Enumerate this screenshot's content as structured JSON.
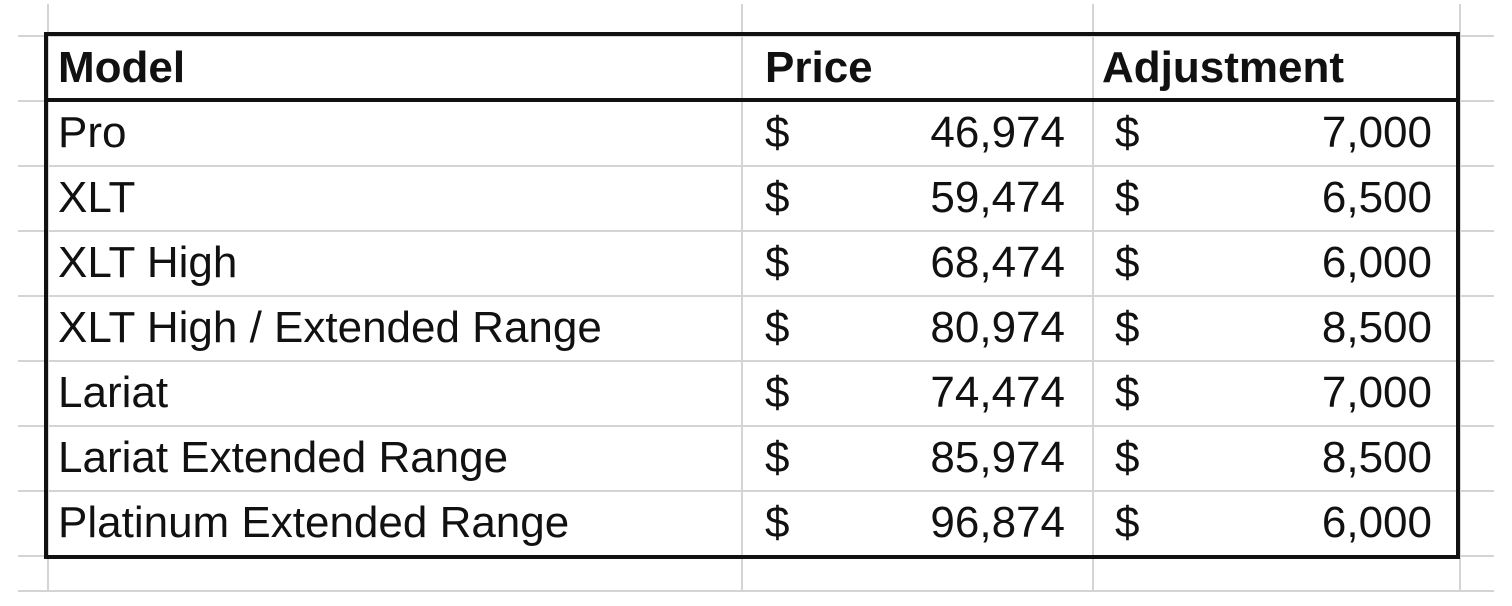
{
  "table": {
    "header": [
      "Model",
      "Price",
      "Adjustment"
    ],
    "rows": [
      [
        "Pro",
        "$",
        "46,974",
        "$",
        "7,000"
      ],
      [
        "XLT",
        "$",
        "59,474",
        "$",
        "6,500"
      ],
      [
        "XLT High",
        "$",
        "68,474",
        "$",
        "6,000"
      ],
      [
        "XLT High / Extended Range",
        "$",
        "80,974",
        "$",
        "8,500"
      ],
      [
        "Lariat",
        "$",
        "74,474",
        "$",
        "7,000"
      ],
      [
        "Lariat Extended Range",
        "$",
        "85,974",
        "$",
        "8,500"
      ],
      [
        "Platinum Extended Range",
        "$",
        "96,874",
        "$",
        "6,000"
      ]
    ]
  }
}
